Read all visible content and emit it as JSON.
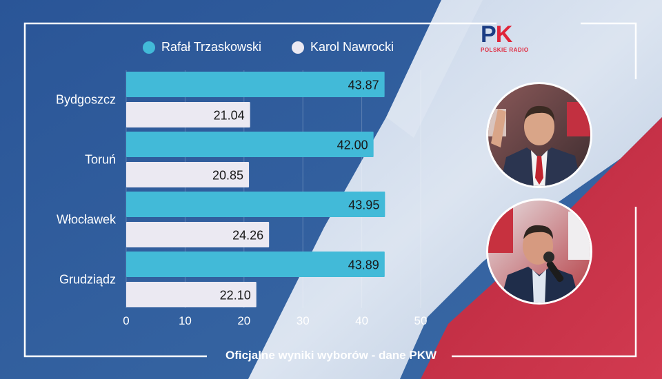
{
  "colors": {
    "series_1": "#42bad8",
    "series_2": "#ebe9f2",
    "flag_red": "#c32f45",
    "background_blue": "#2d5a98",
    "frame": "#ffffff",
    "text_light": "#ffffff",
    "value_text": "#1a1a1a"
  },
  "logo": {
    "mark_left": "P",
    "mark_right": "K",
    "subtitle": "POLSKIE RADIO"
  },
  "footer": {
    "caption": "Oficjalne wyniki wyborów - dane PKW"
  },
  "portraits": [
    {
      "icon": "candidate-photo-trzaskowski"
    },
    {
      "icon": "candidate-photo-nawrocki"
    }
  ],
  "chart_data": {
    "type": "bar",
    "orientation": "horizontal",
    "categories": [
      "Bydgoszcz",
      "Toruń",
      "Włocławek",
      "Grudziądz"
    ],
    "series": [
      {
        "name": "Rafał Trzaskowski",
        "values": [
          43.87,
          42.0,
          43.95,
          43.89
        ]
      },
      {
        "name": "Karol Nawrocki",
        "values": [
          21.04,
          20.85,
          24.26,
          22.1
        ]
      }
    ],
    "value_labels": [
      [
        "43.87",
        "42.00",
        "43.95",
        "43.89"
      ],
      [
        "21.04",
        "20.85",
        "24.26",
        "22.10"
      ]
    ],
    "xlim": [
      0,
      50
    ],
    "xticks": [
      "0",
      "10",
      "20",
      "30",
      "40",
      "50"
    ],
    "grid": true,
    "legend_placement": "top-center"
  }
}
